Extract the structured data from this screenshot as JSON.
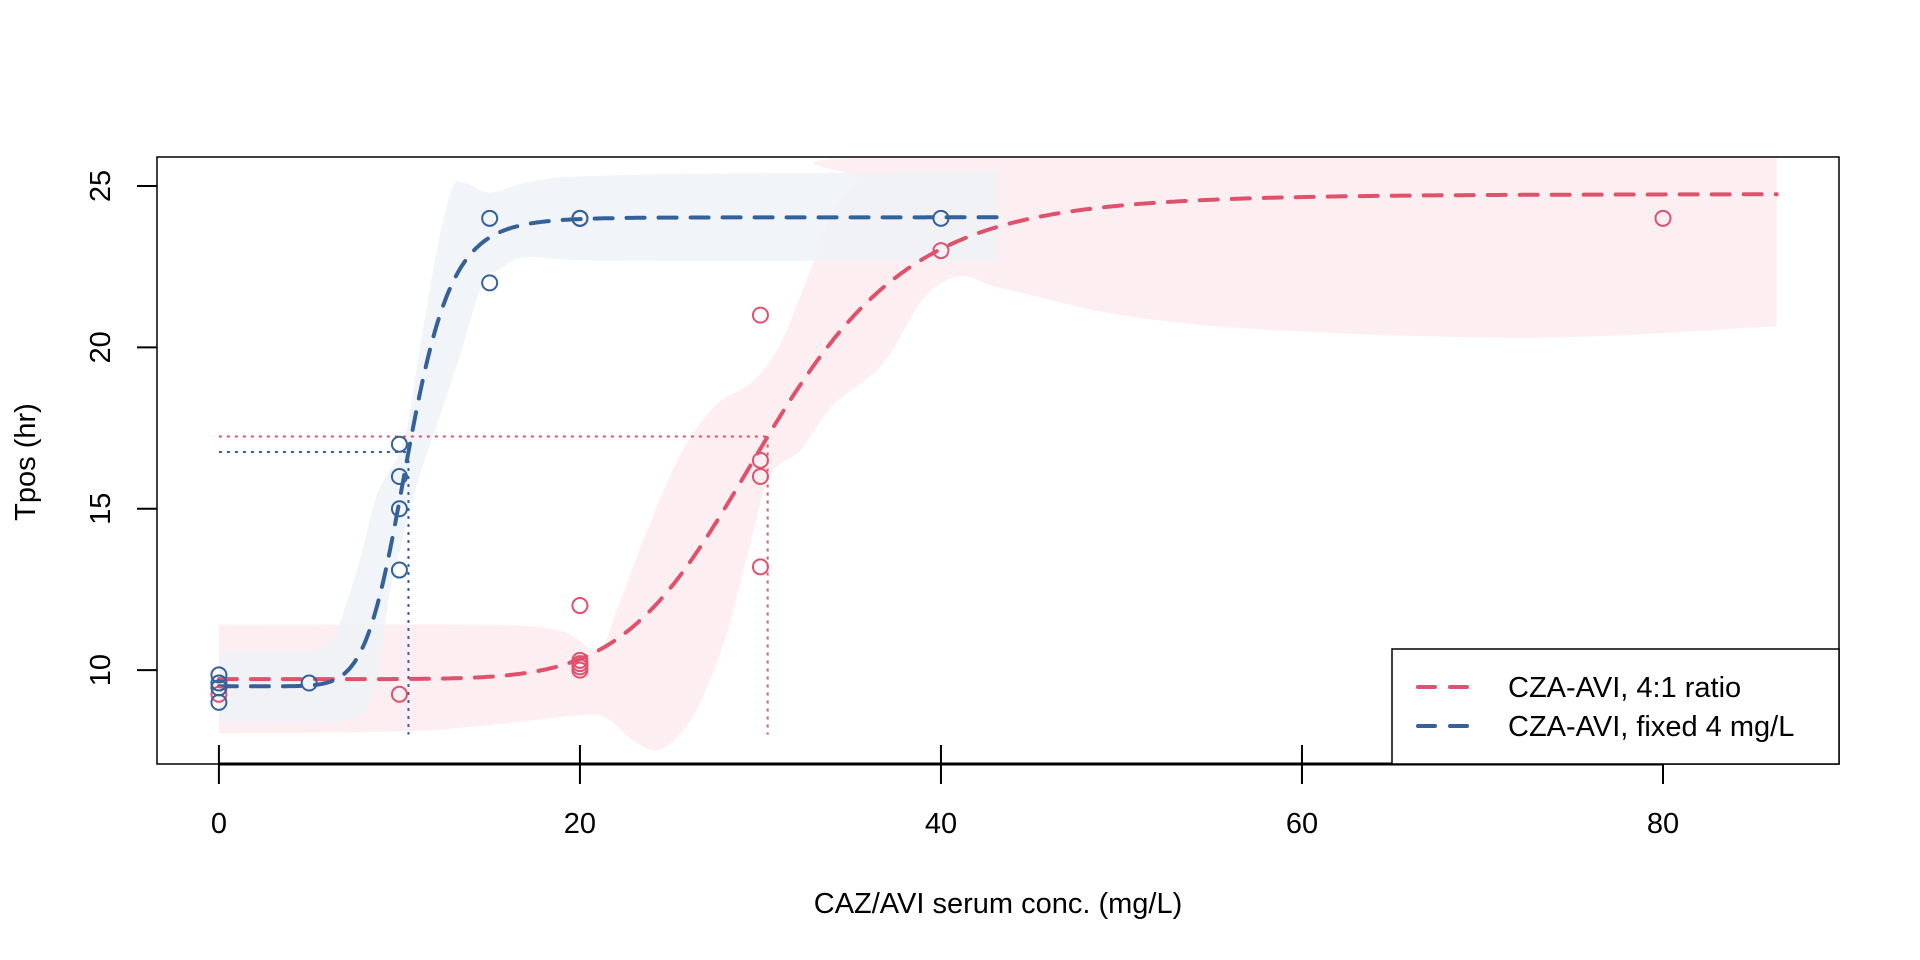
{
  "chart_data": {
    "type": "scatter",
    "title": "",
    "xlabel": "CAZ/AVI serum conc. (mg/L)",
    "ylabel": "Tpos (hr)",
    "xlim": [
      -3.43,
      89.75
    ],
    "ylim": [
      7.09,
      25.9
    ],
    "xticks": [
      0,
      20,
      40,
      60,
      80
    ],
    "xtick_labels": [
      "0",
      "20",
      "40",
      "60",
      "80"
    ],
    "yticks": [
      10,
      15,
      20,
      25
    ],
    "ytick_labels": [
      "10",
      "15",
      "20",
      "25"
    ],
    "grid": false,
    "legend": {
      "position": "bottom-right",
      "entries": [
        {
          "label": "CZA-AVI, 4:1 ratio",
          "color": "#E0516B",
          "style": "dashed"
        },
        {
          "label": "CZA-AVI, fixed 4 mg/L",
          "color": "#35619B",
          "style": "dashed"
        }
      ]
    },
    "series": [
      {
        "name": "CZA-AVI, 4:1 ratio",
        "color": "#E0516B",
        "band_color": "#FDEEF1",
        "points": [
          {
            "x": 0,
            "y": 9.6
          },
          {
            "x": 0,
            "y": 9.25
          },
          {
            "x": 10,
            "y": 9.25
          },
          {
            "x": 20,
            "y": 12.0
          },
          {
            "x": 20,
            "y": 10.3
          },
          {
            "x": 20,
            "y": 10.2
          },
          {
            "x": 20,
            "y": 10.1
          },
          {
            "x": 20,
            "y": 10.0
          },
          {
            "x": 30,
            "y": 21.0
          },
          {
            "x": 30,
            "y": 16.5
          },
          {
            "x": 30,
            "y": 16.0
          },
          {
            "x": 30,
            "y": 13.2
          },
          {
            "x": 40,
            "y": 23.0
          },
          {
            "x": 80,
            "y": 24.0
          }
        ],
        "fit": {
          "model": "log-logistic",
          "lower": 9.72,
          "upper": 24.75,
          "ec50": 30.4,
          "hill": 7.5,
          "x_range": [
            0,
            86.3
          ]
        },
        "ec50_marker": {
          "x": 30.4,
          "y": 17.24,
          "y_floor": 8.0
        },
        "band_upper": [
          [
            0,
            11.4
          ],
          [
            15,
            11.4
          ],
          [
            19,
            11.2
          ],
          [
            21,
            10.6
          ],
          [
            22,
            11.8
          ],
          [
            23.5,
            14.0
          ],
          [
            25.5,
            16.6
          ],
          [
            27.5,
            18.2
          ],
          [
            29.5,
            18.9
          ],
          [
            31,
            20.0
          ],
          [
            32.5,
            22.0
          ],
          [
            34,
            24.2
          ],
          [
            35.5,
            25.2
          ],
          [
            37,
            25.9
          ],
          [
            86.3,
            25.9
          ]
        ],
        "band_lower": [
          [
            86.3,
            20.66
          ],
          [
            73,
            20.3
          ],
          [
            58,
            20.55
          ],
          [
            50,
            21.0
          ],
          [
            44.4,
            21.7
          ],
          [
            42.9,
            21.9
          ],
          [
            41,
            22.2
          ],
          [
            39,
            21.5
          ],
          [
            36.8,
            19.5
          ],
          [
            34,
            18.2
          ],
          [
            32.2,
            16.8
          ],
          [
            30.5,
            16.0
          ],
          [
            29.2,
            13.4
          ],
          [
            28,
            10.9
          ],
          [
            26.3,
            8.6
          ],
          [
            24.5,
            7.55
          ],
          [
            23,
            7.8
          ],
          [
            21.5,
            8.5
          ],
          [
            20,
            8.6
          ],
          [
            15,
            8.3
          ],
          [
            10,
            8.1
          ],
          [
            0,
            8.05
          ]
        ]
      },
      {
        "name": "CZA-AVI, fixed 4 mg/L",
        "color": "#35619B",
        "band_color": "#EEF2F7",
        "points": [
          {
            "x": 0,
            "y": 9.85
          },
          {
            "x": 0,
            "y": 9.6
          },
          {
            "x": 0,
            "y": 9.45
          },
          {
            "x": 0,
            "y": 9.0
          },
          {
            "x": 5,
            "y": 9.6
          },
          {
            "x": 10,
            "y": 17.0
          },
          {
            "x": 10,
            "y": 16.0
          },
          {
            "x": 10,
            "y": 15.0
          },
          {
            "x": 10,
            "y": 13.1
          },
          {
            "x": 15,
            "y": 24.0
          },
          {
            "x": 15,
            "y": 22.0
          },
          {
            "x": 20,
            "y": 24.0
          },
          {
            "x": 20,
            "y": 24.0
          },
          {
            "x": 40,
            "y": 24.0
          }
        ],
        "fit": {
          "model": "log-logistic",
          "lower": 9.5,
          "upper": 24.03,
          "ec50": 10.5,
          "hill": 8.7,
          "x_range": [
            0,
            43.2
          ]
        },
        "ec50_marker": {
          "x": 10.5,
          "y": 16.76,
          "y_floor": 8.0
        },
        "band_upper": [
          [
            0,
            10.56
          ],
          [
            5,
            10.6
          ],
          [
            6.3,
            11.0
          ],
          [
            7.2,
            12.3
          ],
          [
            7.9,
            13.6
          ],
          [
            8.8,
            15.5
          ],
          [
            10.2,
            17.0
          ],
          [
            11,
            19.5
          ],
          [
            12,
            22.8
          ],
          [
            12.9,
            24.9
          ],
          [
            13.6,
            25.1
          ],
          [
            15,
            24.8
          ],
          [
            17,
            25.1
          ],
          [
            20,
            25.3
          ],
          [
            30,
            25.4
          ],
          [
            43.2,
            25.43
          ]
        ],
        "band_lower": [
          [
            43.2,
            22.68
          ],
          [
            30,
            22.68
          ],
          [
            20,
            22.7
          ],
          [
            17,
            22.8
          ],
          [
            15.5,
            22.4
          ],
          [
            14.6,
            22.0
          ],
          [
            13.5,
            20.0
          ],
          [
            12.5,
            18.3
          ],
          [
            11.7,
            17.0
          ],
          [
            11.1,
            16.0
          ],
          [
            10.6,
            15.0
          ],
          [
            9.9,
            13.4
          ],
          [
            9.4,
            12.2
          ],
          [
            8.9,
            10.3
          ],
          [
            8.3,
            8.9
          ],
          [
            7.3,
            8.45
          ],
          [
            5,
            8.4
          ],
          [
            0,
            8.4
          ]
        ]
      }
    ]
  }
}
